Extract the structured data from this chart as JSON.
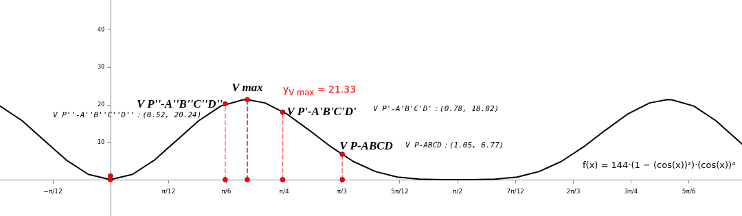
{
  "chart_data": {
    "type": "line",
    "xlim": [
      -0.5,
      2.86
    ],
    "ylim": [
      -9.7,
      47.9
    ],
    "xticks": [
      {
        "value": -0.2618,
        "label": "−π/12"
      },
      {
        "value": 0.2618,
        "label": "π/12"
      },
      {
        "value": 0.5236,
        "label": "π/6"
      },
      {
        "value": 0.7854,
        "label": "π/4"
      },
      {
        "value": 1.0472,
        "label": "π/3"
      },
      {
        "value": 1.309,
        "label": "5π/12"
      },
      {
        "value": 1.5708,
        "label": "π/2"
      },
      {
        "value": 1.8326,
        "label": "7π/12"
      },
      {
        "value": 2.0944,
        "label": "2π/3"
      },
      {
        "value": 2.3562,
        "label": "3π/4"
      },
      {
        "value": 2.618,
        "label": "5π/6"
      }
    ],
    "yticks": [
      10,
      20,
      30,
      40
    ],
    "grid": false,
    "series": [
      {
        "type": "line",
        "color": "#000000",
        "line_style": "solid",
        "x": [
          -0.5,
          -0.4,
          -0.3,
          -0.2,
          -0.1,
          0,
          0.1,
          0.2,
          0.3,
          0.4,
          0.5,
          0.6,
          0.62,
          0.7,
          0.8,
          0.9,
          1.0,
          1.1,
          1.2,
          1.3,
          1.4,
          1.5,
          1.5708,
          1.6416,
          1.7416,
          1.8416,
          1.9416,
          2.0416,
          2.1416,
          2.2416,
          2.3416,
          2.4416,
          2.5216,
          2.5416,
          2.6416,
          2.7416,
          2.8416,
          2.86
        ],
        "values": [
          19.63,
          15.72,
          10.48,
          5.24,
          1.41,
          0,
          1.41,
          5.24,
          10.48,
          15.72,
          19.63,
          21.3,
          21.33,
          20.45,
          17.46,
          13.19,
          8.69,
          4.84,
          2.16,
          0.68,
          0.12,
          0,
          0,
          0,
          0.12,
          0.68,
          2.16,
          4.84,
          8.69,
          13.19,
          17.46,
          20.45,
          21.33,
          21.3,
          19.63,
          15.72,
          10.48,
          9.48
        ]
      },
      {
        "type": "line",
        "color": "#ff6666",
        "line_style": "dashed",
        "x": [
          0.52,
          0.52
        ],
        "values": [
          0,
          20.24
        ]
      },
      {
        "type": "line",
        "color": "#ff0000",
        "line_style": "dashed",
        "x": [
          0.62,
          0.62
        ],
        "values": [
          0,
          21.33
        ]
      },
      {
        "type": "line",
        "color": "#ff6666",
        "line_style": "dashed",
        "x": [
          0.78,
          0.78
        ],
        "values": [
          0,
          18.02
        ]
      },
      {
        "type": "line",
        "color": "#ff6666",
        "line_style": "dashed",
        "x": [
          1.05,
          1.05
        ],
        "values": [
          0,
          6.77
        ]
      },
      {
        "type": "scatter",
        "color": "#ff0000",
        "marker": "circle",
        "x": [
          0,
          0,
          0.52,
          0.52,
          0.62,
          0.62,
          0.78,
          0.78,
          1.05,
          1.05
        ],
        "values": [
          0,
          1,
          0,
          20.24,
          0,
          21.33,
          0,
          18.02,
          0,
          6.77
        ]
      }
    ],
    "annotations": [
      {
        "text": "V P''-A''B''C''D''",
        "x": 0.52,
        "y": 20.24
      },
      {
        "text": "V max",
        "x": 0.62,
        "y": 21.33
      },
      {
        "text": "V P'-A'B'C'D'",
        "x": 0.78,
        "y": 18.02
      },
      {
        "text": "V P-ABCD",
        "x": 1.05,
        "y": 6.77
      },
      "y$_{V max}$ = 21.33",
      "V P''-A''B''C''D''：(0.52, 20.24)",
      "V P'-A'B'C'D'：(0.78, 18.02)",
      "V P-ABCD：(1.05, 6.77)",
      "f(x) = 144·(1 − (cos(x))²)·(cos(x))⁴"
    ]
  }
}
